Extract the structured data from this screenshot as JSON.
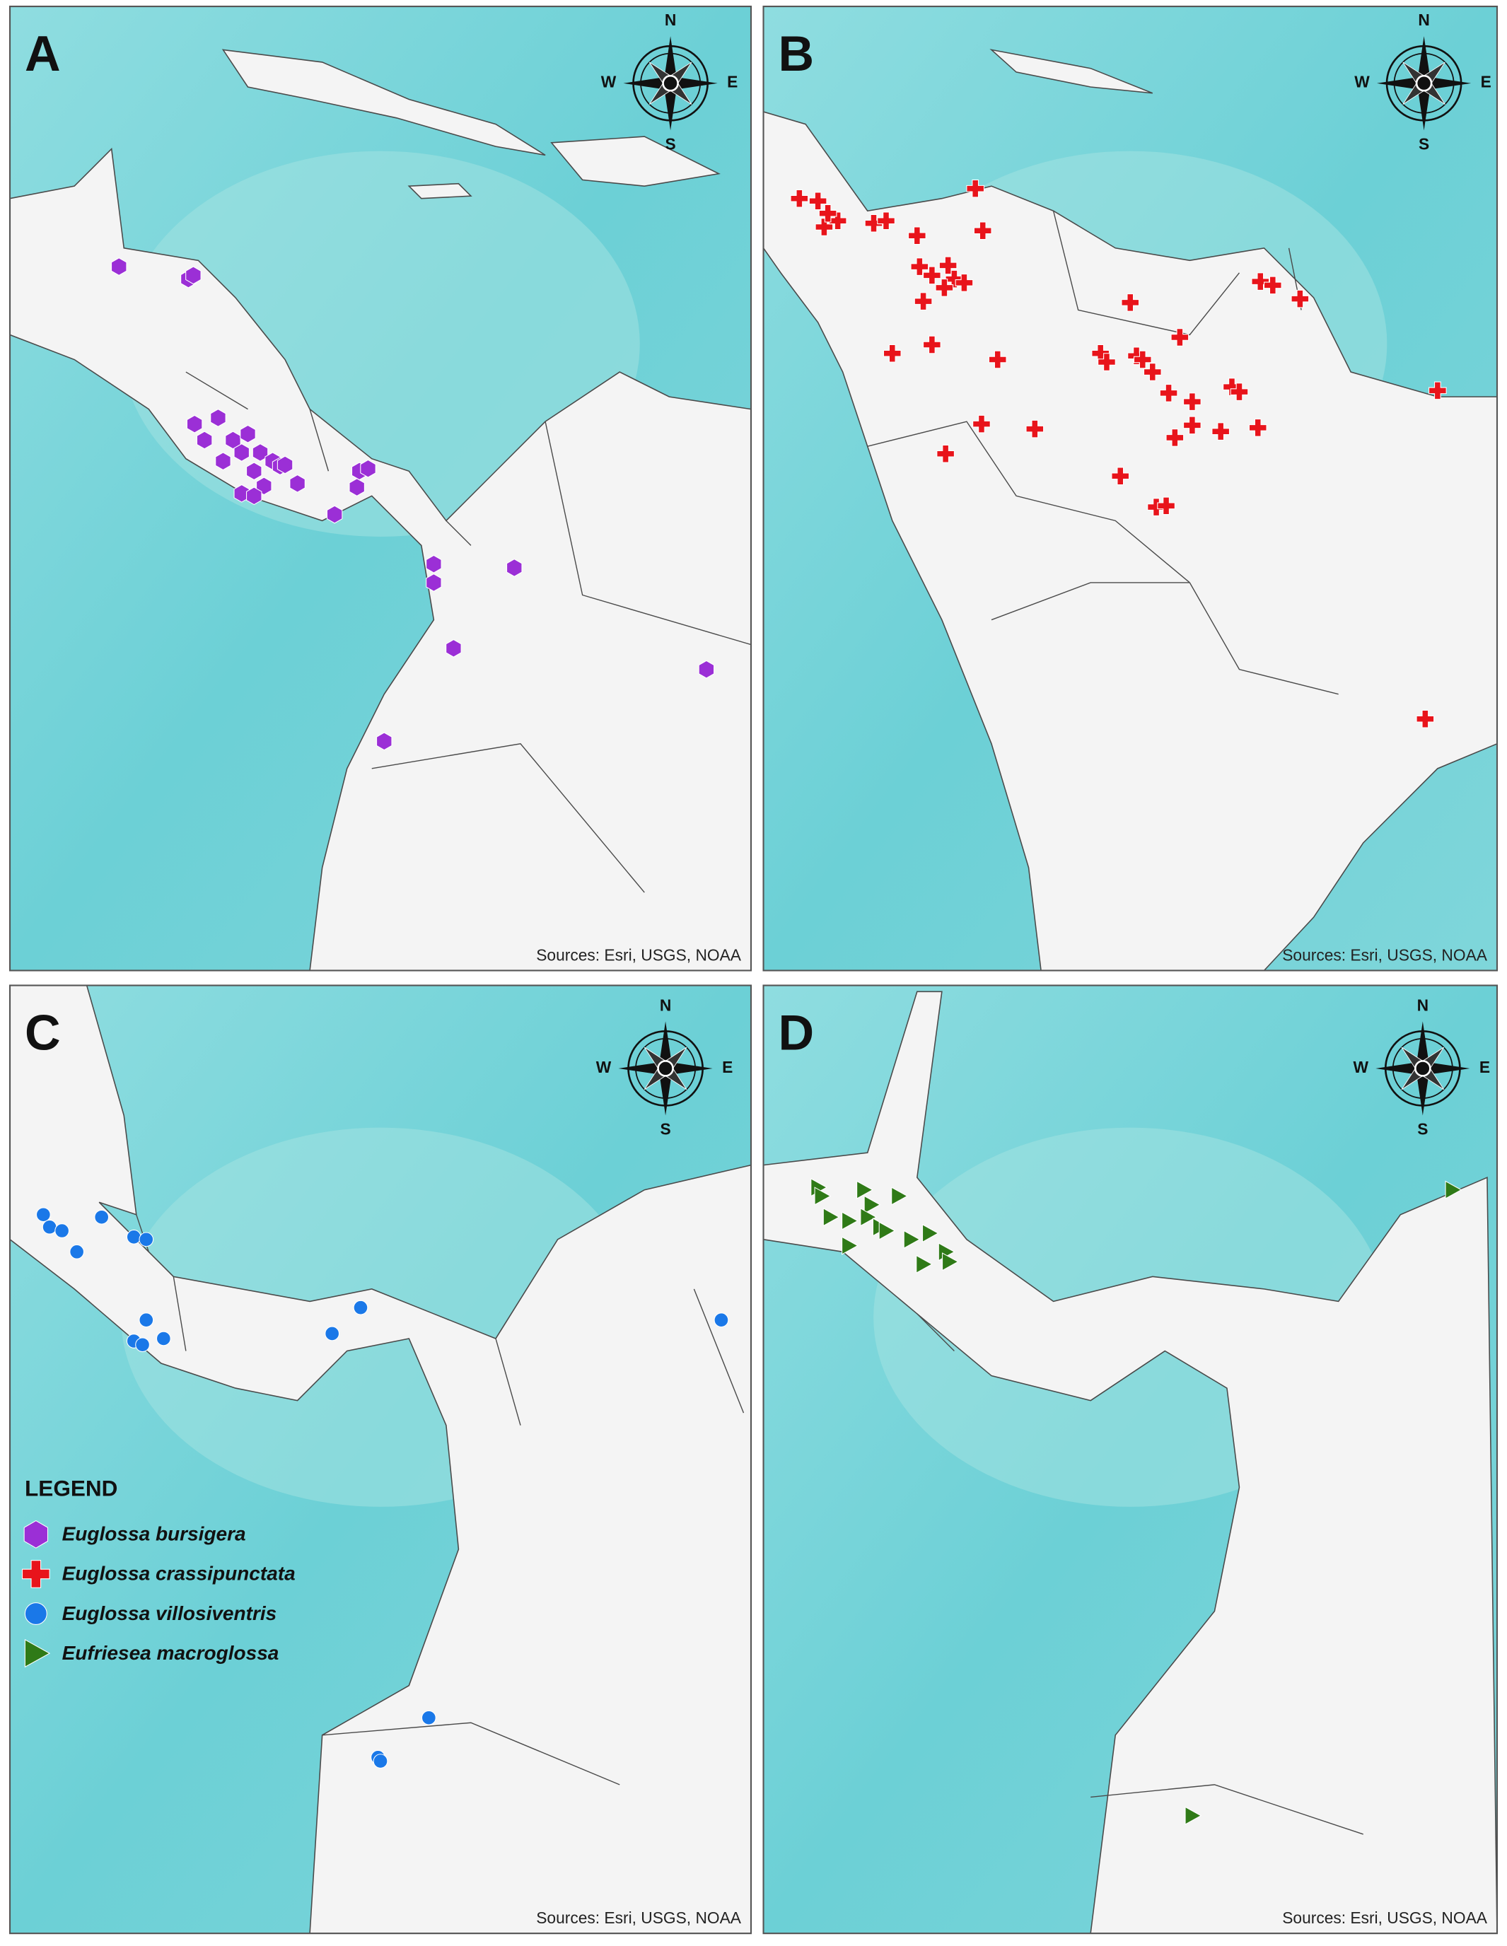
{
  "panels": [
    {
      "label": "A",
      "compass": {
        "n": "N",
        "w": "W",
        "e": "E",
        "s": "S"
      },
      "source": "Sources: Esri, USGS, NOAA"
    },
    {
      "label": "B",
      "compass": {
        "n": "N",
        "w": "W",
        "e": "E",
        "s": "S"
      },
      "source": "Sources: Esri, USGS, NOAA"
    },
    {
      "label": "C",
      "compass": {
        "n": "N",
        "w": "W",
        "e": "E",
        "s": "S"
      },
      "source": "Sources: Esri, USGS, NOAA"
    },
    {
      "label": "D",
      "compass": {
        "n": "N",
        "w": "W",
        "e": "E",
        "s": "S"
      },
      "source": "Sources: Esri, USGS, NOAA"
    }
  ],
  "legend": {
    "title": "LEGEND",
    "items": [
      "Euglossa bursigera",
      "Euglossa crassipunctata",
      "Euglossa villosiventris",
      "Eufriesea macroglossa"
    ]
  }
}
